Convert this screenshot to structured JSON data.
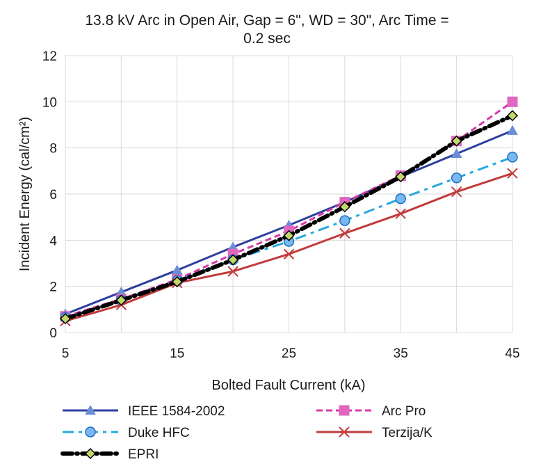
{
  "chart_data": {
    "type": "line",
    "title_lines": [
      "13.8 kV Arc in Open Air, Gap = 6\", WD = 30\", Arc Time =",
      "0.2 sec"
    ],
    "xlabel": "Bolted Fault Current (kA)",
    "ylabel": "Incident Energy  (cal/cm²)",
    "xlim": [
      5,
      45
    ],
    "ylim": [
      0,
      12
    ],
    "x_ticks": [
      5,
      15,
      25,
      35,
      45
    ],
    "y_ticks": [
      0,
      2,
      4,
      6,
      8,
      10,
      12
    ],
    "x_ticks_labels": [
      "5",
      "15",
      "25",
      "35",
      "45"
    ],
    "y_ticks_labels": [
      "0",
      "2",
      "4",
      "6",
      "8",
      "10",
      "12"
    ],
    "x_grid_minor": [
      10,
      20,
      30,
      40
    ],
    "grid": true,
    "legend_position": "bottom",
    "x": [
      5,
      10,
      15,
      20,
      25,
      30,
      35,
      40,
      45
    ],
    "series": [
      {
        "name": "IEEE 1584-2002",
        "color": "#2e3f9e",
        "dash": "solid",
        "marker": "triangle",
        "marker_color": "#6b8fd6",
        "values": [
          0.8,
          1.75,
          2.7,
          3.7,
          4.65,
          5.65,
          6.75,
          7.75,
          8.75
        ]
      },
      {
        "name": "Arc Pro",
        "color": "#d63aa8",
        "dash": "dashed",
        "marker": "square",
        "marker_color": "#e066c0",
        "values": [
          0.7,
          1.45,
          2.3,
          3.4,
          4.4,
          5.65,
          6.8,
          8.3,
          10.0
        ]
      },
      {
        "name": "Duke HFC",
        "color": "#27a8e0",
        "dash": "dashdot",
        "marker": "circle",
        "marker_color": "#78b8f0",
        "values": [
          0.65,
          1.4,
          2.25,
          3.15,
          3.95,
          4.85,
          5.8,
          6.7,
          7.6
        ]
      },
      {
        "name": "Terzija/K",
        "color": "#c23b3b",
        "dash": "solid",
        "marker": "x",
        "marker_color": "#c23b3b",
        "values": [
          0.5,
          1.2,
          2.15,
          2.65,
          3.4,
          4.3,
          5.15,
          6.1,
          6.9
        ]
      },
      {
        "name": "EPRI",
        "color": "#000000",
        "dash": "heavydot",
        "marker": "diamond",
        "marker_color": "#c2d86a",
        "values": [
          0.6,
          1.4,
          2.2,
          3.15,
          4.2,
          5.45,
          6.75,
          8.3,
          9.4
        ]
      }
    ]
  }
}
